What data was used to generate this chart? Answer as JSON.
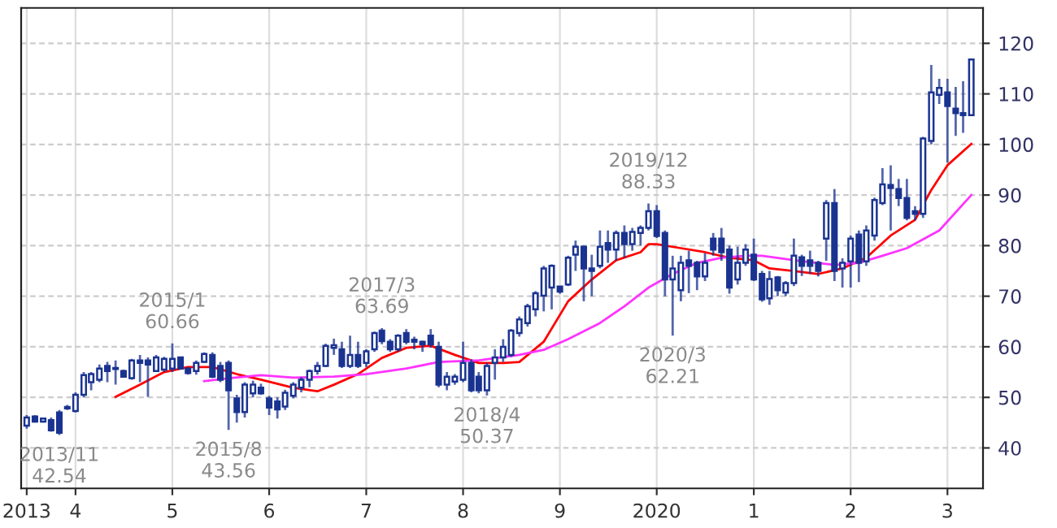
{
  "chart_data": {
    "type": "candlestick",
    "x": [
      "2013-07",
      "2013-08",
      "2013-09",
      "2013-10",
      "2013-11",
      "2013-12",
      "2014-01",
      "2014-02",
      "2014-03",
      "2014-04",
      "2014-05",
      "2014-06",
      "2014-07",
      "2014-08",
      "2014-09",
      "2014-10",
      "2014-11",
      "2014-12",
      "2015-01",
      "2015-02",
      "2015-03",
      "2015-04",
      "2015-05",
      "2015-06",
      "2015-07",
      "2015-08",
      "2015-09",
      "2015-10",
      "2015-11",
      "2015-12",
      "2016-01",
      "2016-02",
      "2016-03",
      "2016-04",
      "2016-05",
      "2016-06",
      "2016-07",
      "2016-08",
      "2016-09",
      "2016-10",
      "2016-11",
      "2016-12",
      "2017-01",
      "2017-02",
      "2017-03",
      "2017-04",
      "2017-05",
      "2017-06",
      "2017-07",
      "2017-08",
      "2017-09",
      "2017-10",
      "2017-11",
      "2017-12",
      "2018-01",
      "2018-02",
      "2018-03",
      "2018-04",
      "2018-05",
      "2018-06",
      "2018-07",
      "2018-08",
      "2018-09",
      "2018-10",
      "2018-11",
      "2018-12",
      "2019-01",
      "2019-02",
      "2019-03",
      "2019-04",
      "2019-05",
      "2019-06",
      "2019-07",
      "2019-08",
      "2019-09",
      "2019-10",
      "2019-11",
      "2019-12",
      "2020-01",
      "2020-02",
      "2020-03",
      "2020-04",
      "2020-05",
      "2020-06",
      "2020-07",
      "2020-08",
      "2020-09",
      "2020-10",
      "2020-11",
      "2020-12",
      "2021-01",
      "2021-02",
      "2021-03",
      "2021-04",
      "2021-05",
      "2021-06",
      "2021-07",
      "2021-08",
      "2021-09",
      "2021-10",
      "2021-11",
      "2021-12",
      "2022-01",
      "2022-02",
      "2022-03",
      "2022-04",
      "2022-05",
      "2022-06",
      "2022-07",
      "2022-08",
      "2022-09",
      "2022-10",
      "2022-11",
      "2022-12",
      "2023-01",
      "2023-02",
      "2023-03",
      "2023-04"
    ],
    "ohlc": [
      [
        44.4,
        46.5,
        43.8,
        46
      ],
      [
        46.2,
        46.5,
        45,
        45.2
      ],
      [
        45.2,
        46,
        45,
        45.8
      ],
      [
        45.5,
        46,
        43.2,
        43.5
      ],
      [
        47,
        47.5,
        42.54,
        43
      ],
      [
        47.8,
        48.5,
        47.5,
        48.1
      ],
      [
        47.3,
        51,
        47,
        50.5
      ],
      [
        50.5,
        55,
        50,
        54.4
      ],
      [
        53,
        55,
        51.4,
        54.6
      ],
      [
        53.5,
        56.5,
        53,
        55.7
      ],
      [
        56.2,
        57,
        53,
        55.2
      ],
      [
        55.6,
        57.3,
        52.5,
        55.8
      ],
      [
        55.2,
        55.5,
        53.9,
        54.1
      ],
      [
        53.8,
        57.6,
        53.5,
        57.3
      ],
      [
        57.3,
        58.4,
        53,
        56.8
      ],
      [
        57.3,
        57.9,
        50.1,
        56.5
      ],
      [
        55.2,
        58.4,
        55,
        57.9
      ],
      [
        55.5,
        58,
        55,
        57.6
      ],
      [
        55.7,
        60.66,
        55,
        57.6
      ],
      [
        57.9,
        58,
        55.5,
        55.7
      ],
      [
        55.7,
        56,
        54.5,
        54.8
      ],
      [
        55.2,
        57.3,
        54.5,
        56.8
      ],
      [
        57,
        58.9,
        56.8,
        58.6
      ],
      [
        58.4,
        58.9,
        53.8,
        54.1
      ],
      [
        56.2,
        57,
        53,
        53.5
      ],
      [
        56.8,
        57.3,
        43.56,
        51.4
      ],
      [
        49.8,
        50.5,
        45,
        47.1
      ],
      [
        47.1,
        53,
        46,
        52.5
      ],
      [
        50.8,
        53.3,
        50,
        52.5
      ],
      [
        51.9,
        52.7,
        50.5,
        50.8
      ],
      [
        49.8,
        50.3,
        46.5,
        48
      ],
      [
        49.2,
        50,
        45.8,
        47.6
      ],
      [
        48.2,
        51.5,
        47.5,
        50.9
      ],
      [
        50.3,
        53,
        49.8,
        52.5
      ],
      [
        51.9,
        54,
        51,
        53.5
      ],
      [
        53.5,
        55.5,
        52,
        55.2
      ],
      [
        55.2,
        57,
        54.5,
        56.2
      ],
      [
        56.2,
        60.6,
        56,
        60.2
      ],
      [
        59.8,
        61.6,
        58.4,
        60.3
      ],
      [
        59.5,
        61,
        55.8,
        56.2
      ],
      [
        56.2,
        62.2,
        55.8,
        58.4
      ],
      [
        58.4,
        61,
        55.8,
        56.2
      ],
      [
        56.8,
        59.5,
        56,
        59.1
      ],
      [
        59.5,
        63,
        59,
        62.7
      ],
      [
        63.2,
        63.69,
        60.5,
        61.1
      ],
      [
        61,
        61.5,
        59,
        59.5
      ],
      [
        59.5,
        62.5,
        59,
        62.2
      ],
      [
        62.7,
        63.5,
        60.5,
        61
      ],
      [
        61.4,
        62,
        59.5,
        61
      ],
      [
        61,
        61.2,
        59,
        60.5
      ],
      [
        62.2,
        63.5,
        59.8,
        60.5
      ],
      [
        60,
        61,
        52,
        52.5
      ],
      [
        52.5,
        55,
        51.4,
        54.1
      ],
      [
        53.1,
        54.6,
        52.5,
        54.1
      ],
      [
        53.5,
        61,
        53,
        56.8
      ],
      [
        56.8,
        57.5,
        51,
        51.4
      ],
      [
        54.1,
        55,
        50.8,
        51.4
      ],
      [
        51.4,
        56.8,
        50.37,
        56.2
      ],
      [
        56.8,
        59.5,
        53.5,
        57.9
      ],
      [
        57.9,
        61.5,
        57,
        60
      ],
      [
        58.4,
        63.5,
        58,
        63.2
      ],
      [
        62.7,
        66,
        62,
        65.4
      ],
      [
        64.7,
        68.5,
        64,
        68
      ],
      [
        67.4,
        71,
        66,
        70.6
      ],
      [
        70.1,
        76,
        67,
        75.5
      ],
      [
        71.7,
        76.3,
        67.4,
        76
      ],
      [
        71.9,
        72,
        70.5,
        70.9
      ],
      [
        72.3,
        78,
        72,
        77.6
      ],
      [
        78.2,
        81,
        75,
        79.8
      ],
      [
        79.8,
        80,
        69,
        75.5
      ],
      [
        75.5,
        78.2,
        70,
        75
      ],
      [
        76,
        83,
        75.5,
        79.8
      ],
      [
        80.5,
        83,
        76.6,
        79.2
      ],
      [
        79.2,
        83,
        77,
        82.5
      ],
      [
        82.5,
        84,
        77.6,
        80.3
      ],
      [
        80.3,
        83.5,
        79,
        82.7
      ],
      [
        82.5,
        84,
        80,
        83.5
      ],
      [
        83.5,
        88.33,
        83,
        86.8
      ],
      [
        86.8,
        88,
        81.5,
        81.9
      ],
      [
        82.5,
        83,
        70,
        73.3
      ],
      [
        73.3,
        78,
        62.21,
        75.5
      ],
      [
        71.2,
        78,
        69,
        76.6
      ],
      [
        77.1,
        79,
        70.6,
        76
      ],
      [
        76.6,
        77,
        71.2,
        73.9
      ],
      [
        73.9,
        78.5,
        73,
        76.6
      ],
      [
        81.4,
        82.5,
        78,
        79.2
      ],
      [
        81.4,
        83.5,
        77,
        78.7
      ],
      [
        79.2,
        80,
        70.5,
        71.7
      ],
      [
        73.3,
        79.8,
        72.3,
        76.6
      ],
      [
        76.6,
        80.3,
        76,
        79.2
      ],
      [
        78.2,
        81.4,
        73,
        73.3
      ],
      [
        74.4,
        75,
        68.9,
        69.4
      ],
      [
        69.6,
        75,
        68.3,
        73.4
      ],
      [
        73.7,
        74,
        70,
        71.2
      ],
      [
        70.7,
        73,
        70,
        72.6
      ],
      [
        72.6,
        81.4,
        72,
        78
      ],
      [
        77.7,
        78.2,
        74,
        76
      ],
      [
        77.1,
        79,
        74.4,
        76
      ],
      [
        76.6,
        77,
        73.9,
        75
      ],
      [
        81.4,
        89,
        77,
        88.4
      ],
      [
        88.4,
        91.2,
        73,
        75
      ],
      [
        75.5,
        77.5,
        71.7,
        76.6
      ],
      [
        76.9,
        82,
        71.7,
        81.4
      ],
      [
        82.2,
        83,
        72.8,
        76.6
      ],
      [
        76.9,
        84,
        76,
        83
      ],
      [
        82,
        89.5,
        81,
        89
      ],
      [
        88.4,
        95.3,
        88,
        92.1
      ],
      [
        92,
        95.9,
        83,
        91.4
      ],
      [
        91.2,
        93.2,
        87.8,
        89.4
      ],
      [
        89.4,
        93.2,
        85,
        85.5
      ],
      [
        86.8,
        87.8,
        85,
        86.3
      ],
      [
        86.3,
        101.5,
        85.5,
        101.2
      ],
      [
        100.7,
        115.7,
        100,
        110.3
      ],
      [
        109.8,
        113,
        108,
        111.2
      ],
      [
        110.3,
        113,
        96.4,
        107.6
      ],
      [
        107.1,
        111.4,
        101.7,
        106.2
      ],
      [
        106.2,
        112.5,
        102.3,
        105.8
      ],
      [
        105.8,
        117,
        105.8,
        116.8
      ]
    ],
    "color": "#1a3391",
    "series": [
      {
        "type": "line",
        "color": "#ff0000",
        "x": [
          "2014-06",
          "2014-09",
          "2014-12",
          "2015-03",
          "2015-06",
          "2015-09",
          "2015-12",
          "2016-04",
          "2016-07",
          "2016-09",
          "2016-12",
          "2017-03",
          "2017-06",
          "2017-09",
          "2017-12",
          "2018-03",
          "2018-06",
          "2018-08",
          "2018-11",
          "2019-02",
          "2019-05",
          "2019-08",
          "2019-11",
          "2019-12",
          "2020-01",
          "2020-04",
          "2020-07",
          "2020-10",
          "2021-01",
          "2021-03",
          "2021-06",
          "2021-09",
          "2021-12",
          "2022-03",
          "2022-06",
          "2022-09",
          "2022-11",
          "2023-01",
          "2023-04"
        ],
        "values": [
          50.1,
          52.5,
          55,
          56,
          56,
          54.6,
          53.5,
          51.9,
          51.2,
          52.5,
          54.6,
          57.8,
          59.8,
          60.2,
          58.4,
          56.8,
          56.8,
          57,
          61,
          69,
          73.3,
          77.1,
          78.7,
          80.3,
          80.3,
          79.5,
          78.7,
          77.6,
          77.1,
          75.5,
          75,
          74.4,
          75.5,
          77.6,
          82,
          85.1,
          91,
          95.9,
          100.1
        ]
      },
      {
        "type": "line",
        "color": "#ff33ff",
        "x": [
          "2015-05",
          "2015-08",
          "2015-12",
          "2016-04",
          "2016-09",
          "2017-01",
          "2017-06",
          "2017-10",
          "2018-03",
          "2018-08",
          "2018-11",
          "2019-02",
          "2019-06",
          "2019-09",
          "2019-12",
          "2020-03",
          "2020-06",
          "2020-09",
          "2020-12",
          "2021-02",
          "2021-07",
          "2021-11",
          "2022-02",
          "2022-05",
          "2022-08",
          "2022-12",
          "2023-04"
        ],
        "values": [
          53.2,
          53.8,
          54.4,
          53.9,
          54.1,
          54.6,
          55.7,
          57,
          57.3,
          58.4,
          59.4,
          61.5,
          64.7,
          68,
          71.7,
          74.4,
          76.6,
          77.6,
          78,
          78,
          76.9,
          76.2,
          76.6,
          78,
          79.5,
          83,
          90
        ]
      }
    ],
    "annotations": [
      {
        "text": "2013/11\n42.54",
        "x": "2013-11",
        "y": 42.54
      },
      {
        "text": "2015/1\n60.66",
        "x": "2015-01",
        "y": 60.66
      },
      {
        "text": "2015/8\n43.56",
        "x": "2015-08",
        "y": 43.56
      },
      {
        "text": "2017/3\n63.69",
        "x": "2017-03",
        "y": 63.69
      },
      {
        "text": "2018/4\n50.37",
        "x": "2018-04",
        "y": 50.37
      },
      {
        "text": "2019/12\n88.33",
        "x": "2019-12",
        "y": 88.33
      },
      {
        "text": "2020/3\n62.21",
        "x": "2020-03",
        "y": 62.21
      }
    ],
    "xlim": [
      "2013-06-10",
      "2023-05-15"
    ],
    "xticks": [
      {
        "value": "2013-07",
        "label": "2013"
      },
      {
        "value": "2014-01",
        "label": "4"
      },
      {
        "value": "2015-01",
        "label": "5"
      },
      {
        "value": "2016-01",
        "label": "6"
      },
      {
        "value": "2017-01",
        "label": "7"
      },
      {
        "value": "2018-01",
        "label": "8"
      },
      {
        "value": "2019-01",
        "label": "9"
      },
      {
        "value": "2020-01",
        "label": "2020"
      },
      {
        "value": "2021-01",
        "label": "1"
      },
      {
        "value": "2022-01",
        "label": "2"
      },
      {
        "value": "2023-01",
        "label": "3"
      }
    ],
    "ylim": [
      32,
      127
    ],
    "yticks": [
      40,
      50,
      60,
      70,
      80,
      90,
      100,
      110,
      120
    ],
    "grid": true
  }
}
